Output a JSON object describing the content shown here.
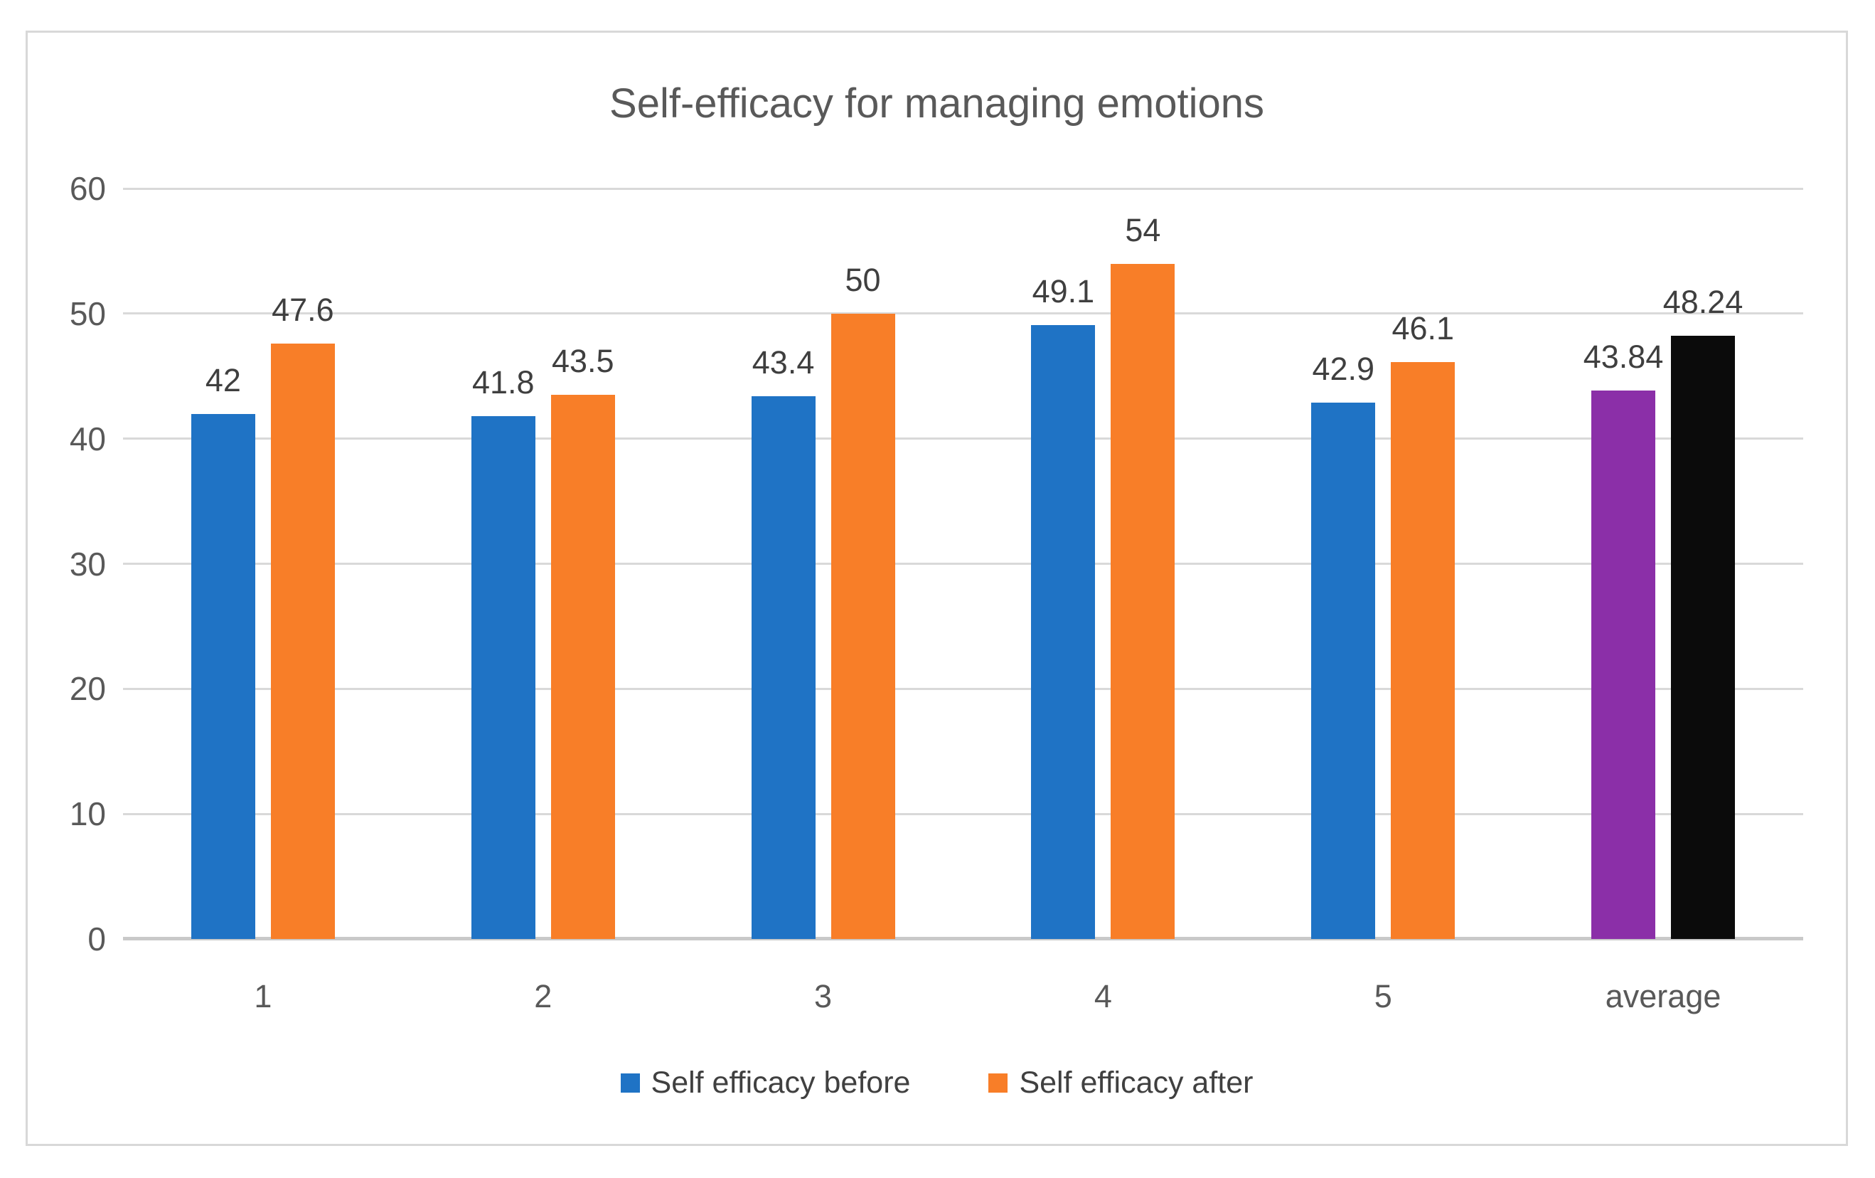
{
  "chart_data": {
    "type": "bar",
    "title": "Self-efficacy for managing emotions",
    "categories": [
      "1",
      "2",
      "3",
      "4",
      "5",
      "average"
    ],
    "series": [
      {
        "name": "Self efficacy before",
        "values": [
          42,
          41.8,
          43.4,
          49.1,
          42.9,
          43.84
        ],
        "labels": [
          "42",
          "41.8",
          "43.4",
          "49.1",
          "42.9",
          "43.84"
        ],
        "colors": [
          "#1f73c5",
          "#1f73c5",
          "#1f73c5",
          "#1f73c5",
          "#1f73c5",
          "#8b2fa8"
        ]
      },
      {
        "name": "Self efficacy after",
        "values": [
          47.6,
          43.5,
          50,
          54,
          46.1,
          48.24
        ],
        "labels": [
          "47.6",
          "43.5",
          "50",
          "54",
          "46.1",
          "48.24"
        ],
        "colors": [
          "#f87e28",
          "#f87e28",
          "#f87e28",
          "#f87e28",
          "#f87e28",
          "#0b0b0b"
        ]
      }
    ],
    "y_axis": {
      "min": 0,
      "max": 60,
      "ticks": [
        0,
        10,
        20,
        30,
        40,
        50,
        60
      ]
    },
    "grid": true,
    "legend_position": "bottom",
    "legend": [
      {
        "label": "Self efficacy before",
        "color": "#1f73c5"
      },
      {
        "label": "Self efficacy after",
        "color": "#f87e28"
      }
    ],
    "colors": {
      "gridline": "#d9d9d9",
      "axis_line": "#c9c9c9",
      "title_text": "#595959",
      "axis_text": "#595959",
      "data_label_text": "#3f3f3f",
      "frame_border": "#d8d8d8",
      "background": "#ffffff"
    }
  }
}
